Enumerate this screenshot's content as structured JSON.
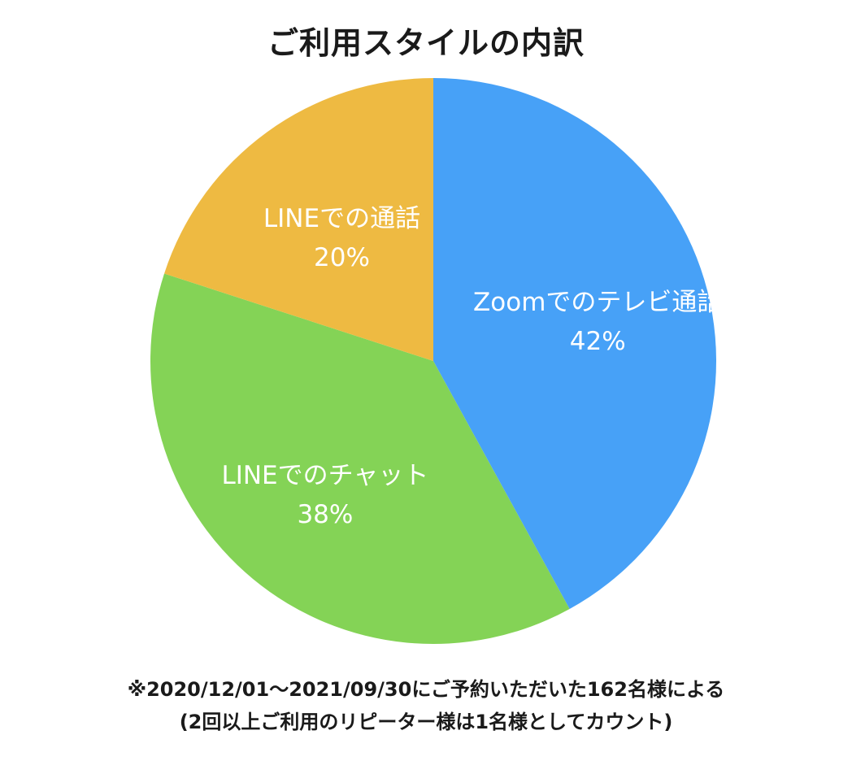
{
  "chart_data": {
    "type": "pie",
    "title": "ご利用スタイルの内訳",
    "categories": [
      "Zoomでのテレビ通話",
      "LINEでのチャット",
      "LINEでの通話"
    ],
    "values": [
      42,
      38,
      20
    ],
    "value_labels": [
      "42%",
      "38%",
      "20%"
    ],
    "unit": "%",
    "start": "12 o'clock",
    "direction": "clockwise",
    "colors": [
      "#47a1f7",
      "#84d356",
      "#eeba42"
    ],
    "legend": "none",
    "notes": [
      "※2020/12/01～2021/09/30にご予約いただいた162名様による",
      "(2回以上ご利用のリピーター様は1名様としてカウント)"
    ]
  }
}
